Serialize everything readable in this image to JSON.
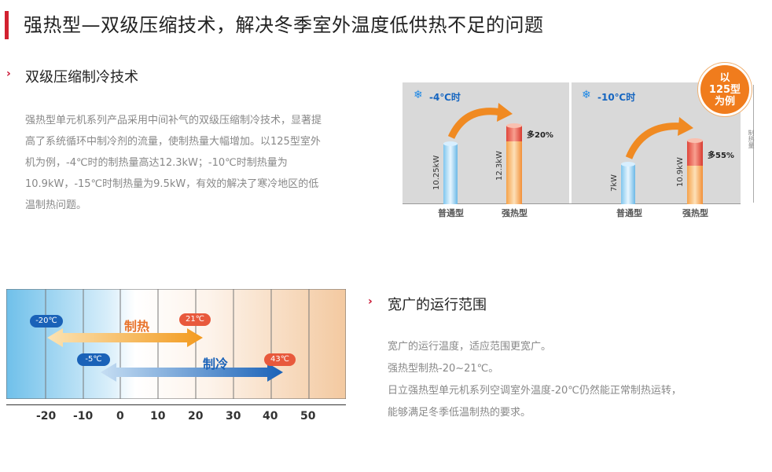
{
  "page_title": "强热型—双级压缩技术，解决冬季室外温度低供热不足的问题",
  "section1": {
    "title": "双级压缩制冷技术",
    "paragraph_lines": [
      "强热型单元机系列产品采用中间补气的双级压缩制冷技术，显著提",
      "高了系统循环中制冷剂的流量，使制热量大幅增加。以125型室外",
      "机为例，-4℃时的制热量高达12.3kW；-10℃时制热量为",
      "10.9kW，-15℃时制热量为9.5kW，有效的解决了寒冷地区的低",
      "温制热问题。"
    ]
  },
  "comparison": {
    "badge": [
      "以",
      "125型",
      "为例"
    ],
    "side_label": "制热量",
    "panels": [
      {
        "condition": "-4℃时",
        "normal_label": "普通型",
        "normal_value": "10.25kW",
        "strong_label": "强热型",
        "strong_value": "12.3kW",
        "increase": "多20%"
      },
      {
        "condition": "-10℃时",
        "normal_label": "普通型",
        "normal_value": "7kW",
        "strong_label": "强热型",
        "strong_value": "10.9kW",
        "increase": "多55%"
      }
    ]
  },
  "range_chart": {
    "ticks": [
      "-20",
      "-10",
      "0",
      "10",
      "20",
      "30",
      "40",
      "50"
    ],
    "heating": {
      "label": "制热",
      "min": "-20℃",
      "max": "21℃",
      "color": "#f39a1e"
    },
    "cooling": {
      "label": "制冷",
      "min": "-5℃",
      "max": "43℃",
      "color": "#1a62b8"
    }
  },
  "section2": {
    "title": "宽广的运行范围",
    "paragraph_lines": [
      "宽广的运行温度，适应范围更宽广。",
      "强热型制热-20~21℃。",
      "日立强热型单元机系列空调室外温度-20℃仍然能正常制热运转，",
      "能够满足冬季低温制热的要求。"
    ]
  }
}
